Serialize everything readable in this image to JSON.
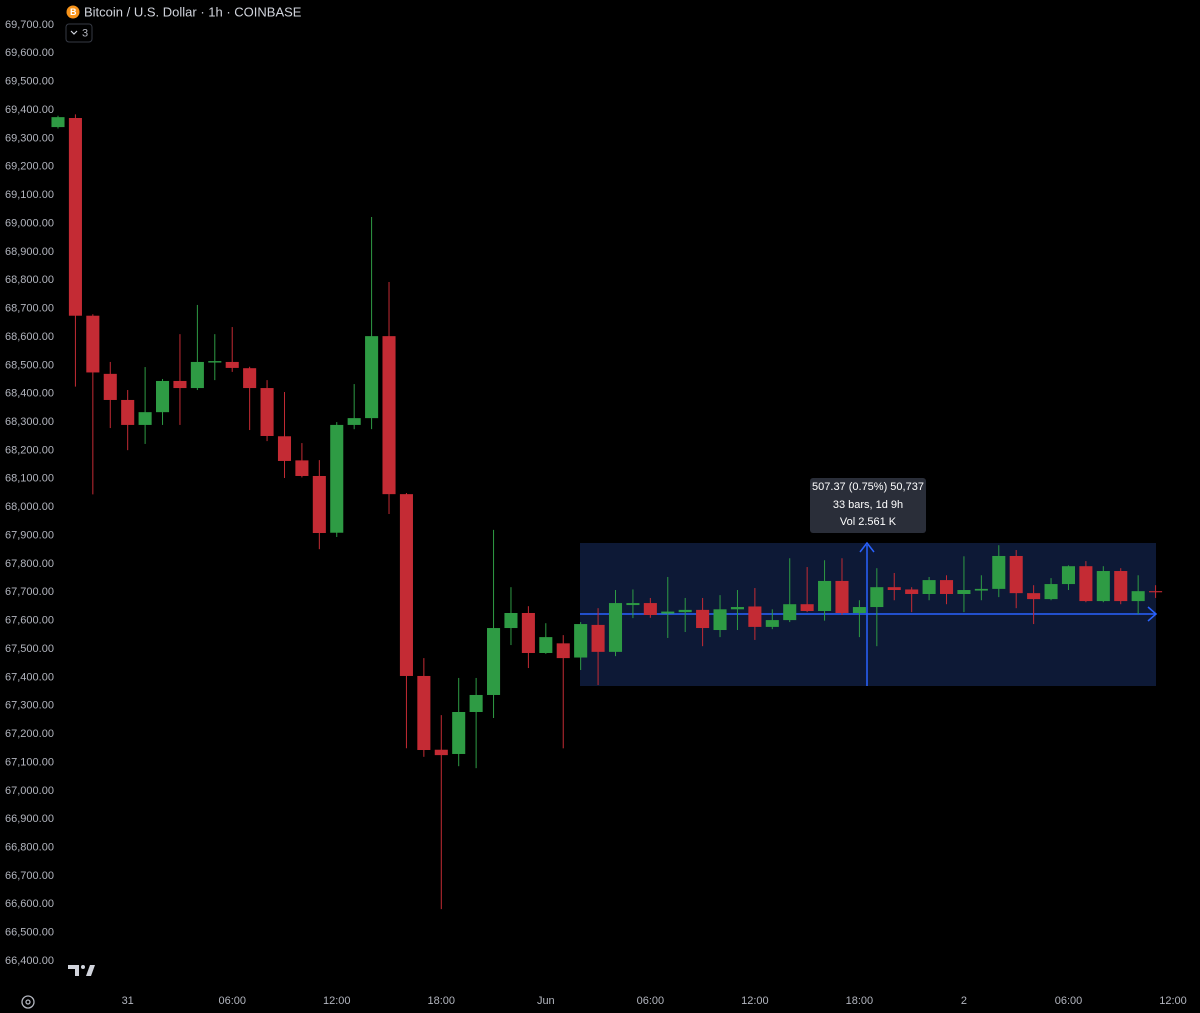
{
  "chart_data": {
    "type": "candlestick",
    "title": "Bitcoin / U.S. Dollar · 1h · COINBASE",
    "indicator_count": "3",
    "annotation": [
      "507.37 (0.75%) 50,737",
      "33 bars, 1d 9h",
      "Vol 2.561 K"
    ],
    "categories": [
      null,
      null,
      null,
      null,
      "31",
      null,
      null,
      null,
      null,
      null,
      "06:00",
      null,
      null,
      null,
      null,
      null,
      "12:00",
      null,
      null,
      null,
      null,
      null,
      "18:00",
      null,
      null,
      null,
      null,
      null,
      "Jun",
      null,
      null,
      null,
      null,
      null,
      "06:00",
      null,
      null,
      null,
      null,
      null,
      "12:00",
      null,
      null,
      null,
      null,
      null,
      "18:00",
      null,
      null,
      null,
      null,
      null,
      "2",
      null,
      null,
      null,
      null,
      null,
      "06:00",
      null,
      null,
      null,
      null,
      null,
      "12:00"
    ],
    "open": [
      69340,
      69372,
      68675,
      68470,
      68378,
      68290,
      68335,
      68445,
      68420,
      68510,
      68512,
      68490,
      68420,
      68250,
      68165,
      68110,
      67910,
      68290,
      68314,
      68603,
      68046,
      67405,
      67145,
      67130,
      67278,
      67338,
      67574,
      67627,
      67486,
      67520,
      67470,
      67585,
      67490,
      67655,
      67662,
      67625,
      67630,
      67638,
      67567,
      67640,
      67650,
      67578,
      67602,
      67658,
      67634,
      67740,
      67627,
      67648,
      67718,
      67710,
      67694,
      67743,
      67694,
      67706,
      67712,
      67828,
      67697,
      67676,
      67729,
      67792,
      67669,
      67775,
      67669,
      67704,
      null
    ],
    "high": [
      69380,
      69385,
      68680,
      68512,
      68413,
      68494,
      68452,
      68610,
      68713,
      68610,
      68635,
      68495,
      68448,
      68406,
      68226,
      68166,
      68300,
      68434,
      69023,
      68794,
      68050,
      67468,
      67267,
      67398,
      67398,
      67920,
      67718,
      67651,
      67591,
      67549,
      67595,
      67644,
      67708,
      67710,
      67680,
      67754,
      67680,
      67680,
      67690,
      67708,
      67715,
      67640,
      67820,
      67789,
      67813,
      67820,
      67672,
      67785,
      67768,
      67718,
      67754,
      67760,
      67827,
      67760,
      67866,
      67849,
      67725,
      67750,
      67795,
      67810,
      67792,
      67785,
      67760,
      67725,
      null
    ],
    "low": [
      69335,
      68425,
      68045,
      68279,
      68201,
      68223,
      68290,
      68290,
      68413,
      68448,
      68477,
      68272,
      68233,
      68103,
      68105,
      67852,
      67895,
      68275,
      68275,
      67976,
      67150,
      67120,
      66583,
      67087,
      67080,
      67257,
      67514,
      67433,
      67483,
      67150,
      67426,
      67373,
      67475,
      67609,
      67610,
      67539,
      67560,
      67510,
      67542,
      67567,
      67532,
      67570,
      67595,
      67630,
      67600,
      67620,
      67542,
      67510,
      67672,
      67630,
      67672,
      67658,
      67630,
      67672,
      67683,
      67644,
      67588,
      67672,
      67708,
      67665,
      67665,
      67658,
      67623,
      67680,
      null
    ],
    "close": [
      69375,
      68675,
      68475,
      68378,
      68290,
      68335,
      68445,
      68420,
      68512,
      68515,
      68491,
      68420,
      68251,
      68163,
      68110,
      67909,
      68290,
      68314,
      68603,
      68046,
      67405,
      67144,
      67126,
      67278,
      67338,
      67574,
      67627,
      67486,
      67542,
      67468,
      67588,
      67490,
      67662,
      67662,
      67620,
      67632,
      67638,
      67574,
      67640,
      67648,
      67578,
      67602,
      67658,
      67634,
      67740,
      67627,
      67648,
      67718,
      67708,
      67694,
      67743,
      67694,
      67708,
      67712,
      67828,
      67697,
      67676,
      67729,
      67792,
      67669,
      67775,
      67669,
      67704,
      67700,
      null
    ],
    "up_color": "#2e9b44",
    "down_color": "#c42b34",
    "ylim": [
      66305,
      69788
    ],
    "yticks": [
      {
        "value": 66400,
        "label": "66,400.00"
      },
      {
        "value": 66500,
        "label": "66,500.00"
      },
      {
        "value": 66600,
        "label": "66,600.00"
      },
      {
        "value": 66700,
        "label": "66,700.00"
      },
      {
        "value": 66800,
        "label": "66,800.00"
      },
      {
        "value": 66900,
        "label": "66,900.00"
      },
      {
        "value": 67000,
        "label": "67,000.00"
      },
      {
        "value": 67100,
        "label": "67,100.00"
      },
      {
        "value": 67200,
        "label": "67,200.00"
      },
      {
        "value": 67300,
        "label": "67,300.00"
      },
      {
        "value": 67400,
        "label": "67,400.00"
      },
      {
        "value": 67500,
        "label": "67,500.00"
      },
      {
        "value": 67600,
        "label": "67,600.00"
      },
      {
        "value": 67700,
        "label": "67,700.00"
      },
      {
        "value": 67800,
        "label": "67,800.00"
      },
      {
        "value": 67900,
        "label": "67,900.00"
      },
      {
        "value": 68000,
        "label": "68,000.00"
      },
      {
        "value": 68100,
        "label": "68,100.00"
      },
      {
        "value": 68200,
        "label": "68,200.00"
      },
      {
        "value": 68300,
        "label": "68,300.00"
      },
      {
        "value": 68400,
        "label": "68,400.00"
      },
      {
        "value": 68500,
        "label": "68,500.00"
      },
      {
        "value": 68600,
        "label": "68,600.00"
      },
      {
        "value": 68700,
        "label": "68,700.00"
      },
      {
        "value": 68800,
        "label": "68,800.00"
      },
      {
        "value": 68900,
        "label": "68,900.00"
      },
      {
        "value": 69000,
        "label": "69,000.00"
      },
      {
        "value": 69100,
        "label": "69,100.00"
      },
      {
        "value": 69200,
        "label": "69,200.00"
      },
      {
        "value": 69300,
        "label": "69,300.00"
      },
      {
        "value": 69400,
        "label": "69,400.00"
      },
      {
        "value": 69500,
        "label": "69,500.00"
      },
      {
        "value": 69600,
        "label": "69,600.00"
      },
      {
        "value": 69700,
        "label": "69,700.00"
      }
    ],
    "grid": false
  }
}
